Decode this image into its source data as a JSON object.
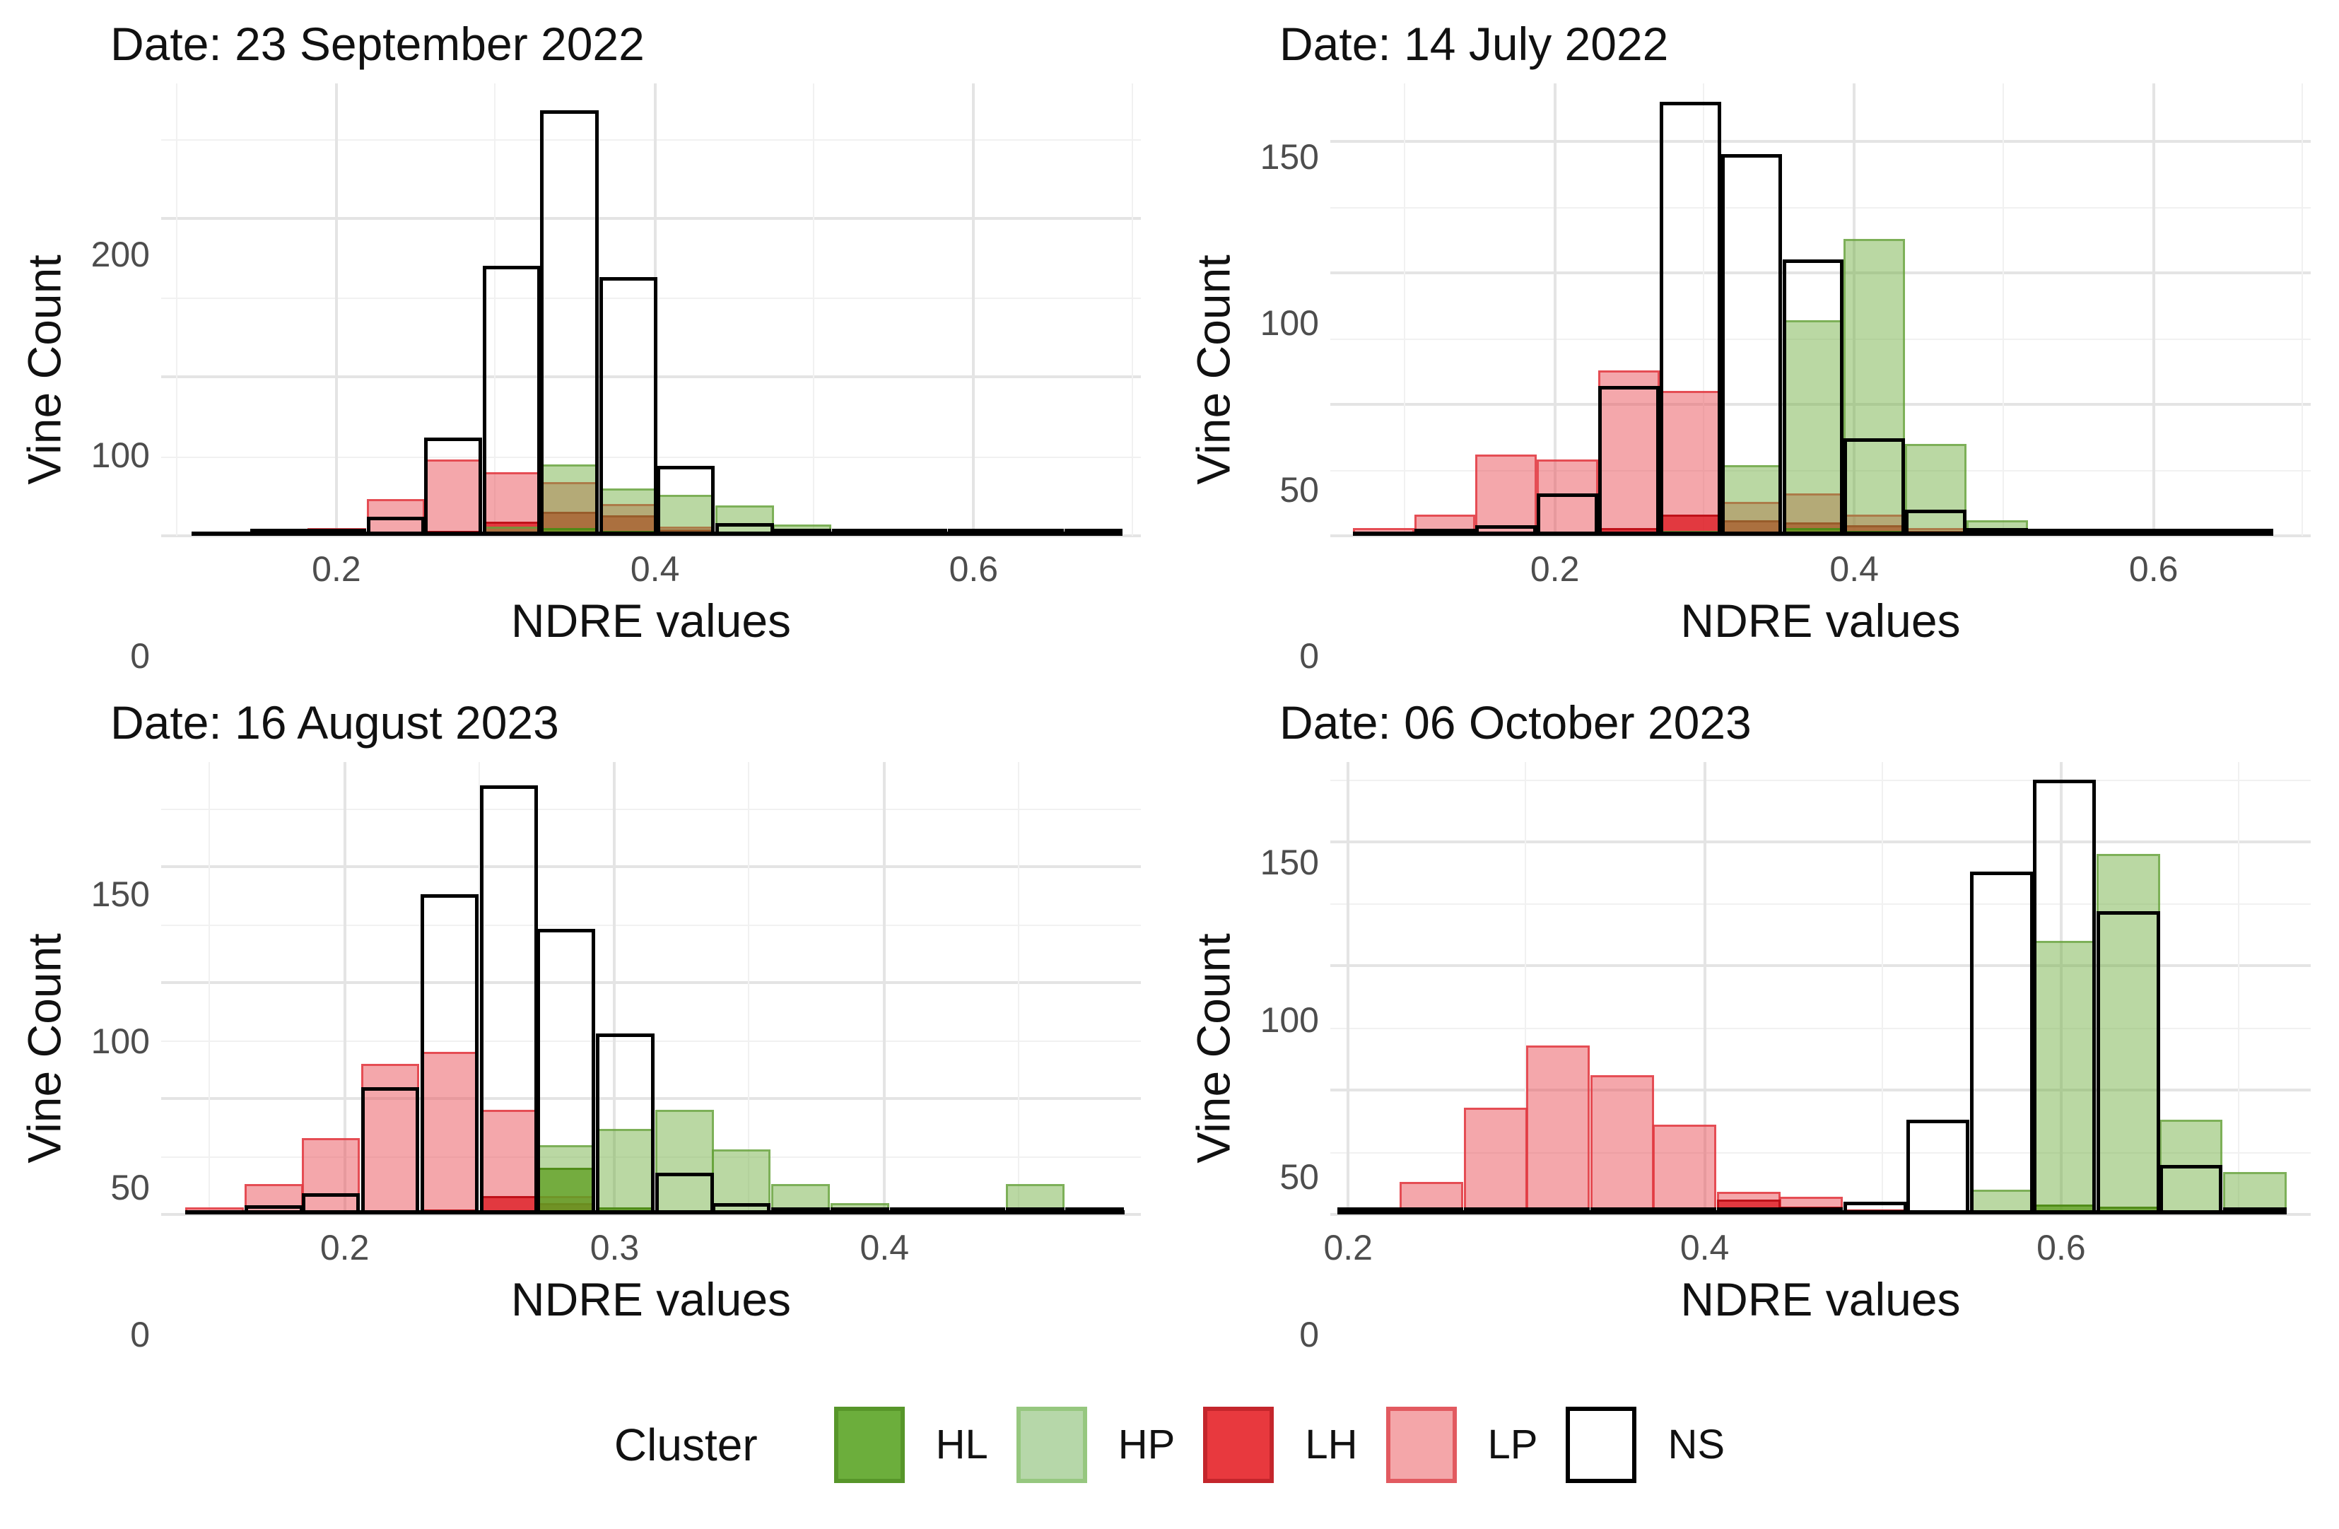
{
  "chart_data": {
    "type": "bar",
    "subtype": "overlaid-histograms",
    "figure_title": "",
    "x_axis_label": "NDRE values",
    "y_axis_label": "Vine Count",
    "legend": {
      "title": "Cluster",
      "position": "bottom",
      "items": [
        {
          "label": "HL",
          "fill": "#6CAE3C",
          "border": "#57962A"
        },
        {
          "label": "HP",
          "fill": "#B6D7A9",
          "border": "#96C77F"
        },
        {
          "label": "LH",
          "fill": "#E8393E",
          "border": "#C4262C"
        },
        {
          "label": "LP",
          "fill": "#F4A6A9",
          "border": "#E25A60"
        },
        {
          "label": "NS",
          "fill": "#FFFFFF",
          "border": "#000000"
        }
      ]
    },
    "draw_order": [
      "LP",
      "LH",
      "HP",
      "HL",
      "NS"
    ],
    "bar_colors": {
      "LP": {
        "fill": "rgba(234,80,87,0.50)",
        "border": "rgba(225,55,62,0.80)"
      },
      "LH": {
        "fill": "rgba(221,26,33,0.78)",
        "border": "rgba(185,12,20,0.85)"
      },
      "HP": {
        "fill": "rgba(110,173,62,0.48)",
        "border": "rgba(100,160,55,0.70)"
      },
      "HL": {
        "fill": "rgba(92,158,29,0.75)",
        "border": "rgba(75,135,20,0.88)"
      },
      "NS": {
        "fill": "transparent",
        "border": "#000000"
      }
    },
    "grid": {
      "major_color": "#e4e4e4",
      "minor_color": "#f1f1f1",
      "background": "#ffffff"
    },
    "panels": [
      {
        "title": "Date: 23 September 2022",
        "x_min": 0.09,
        "x_max": 0.705,
        "y_max": 285,
        "x_ticks": [
          0.2,
          0.4,
          0.6
        ],
        "y_ticks": [
          0,
          100,
          200
        ],
        "x_minor": [
          0.1,
          0.3,
          0.5,
          0.7
        ],
        "y_minor": [
          50,
          150,
          250
        ],
        "bin_width": 0.0365,
        "baseline": [
          0.109,
          0.6935
        ],
        "series": {
          "LP": [
            [
              0.109,
              2
            ],
            [
              0.146,
              1
            ],
            [
              0.182,
              5
            ],
            [
              0.219,
              23
            ],
            [
              0.255,
              48
            ],
            [
              0.292,
              40
            ],
            [
              0.328,
              34
            ],
            [
              0.365,
              20
            ],
            [
              0.401,
              6
            ],
            [
              0.438,
              2
            ]
          ],
          "LH": [
            [
              0.255,
              3
            ],
            [
              0.292,
              9
            ],
            [
              0.328,
              15
            ],
            [
              0.365,
              13
            ],
            [
              0.401,
              4
            ]
          ],
          "HP": [
            [
              0.292,
              6
            ],
            [
              0.328,
              45
            ],
            [
              0.365,
              30
            ],
            [
              0.401,
              26
            ],
            [
              0.438,
              19
            ],
            [
              0.474,
              7
            ],
            [
              0.511,
              3
            ]
          ],
          "HL": [
            [
              0.328,
              5
            ],
            [
              0.365,
              3
            ]
          ],
          "NS": [
            [
              0.146,
              1
            ],
            [
              0.182,
              3
            ],
            [
              0.219,
              12
            ],
            [
              0.255,
              62
            ],
            [
              0.292,
              170
            ],
            [
              0.328,
              268
            ],
            [
              0.365,
              163
            ],
            [
              0.401,
              44
            ],
            [
              0.438,
              8
            ],
            [
              0.474,
              4
            ],
            [
              0.511,
              2
            ],
            [
              0.547,
              2
            ],
            [
              0.584,
              2
            ],
            [
              0.62,
              3
            ],
            [
              0.657,
              3
            ]
          ]
        }
      },
      {
        "title": "Date: 14 July 2022",
        "x_min": 0.05,
        "x_max": 0.705,
        "y_max": 172,
        "x_ticks": [
          0.2,
          0.4,
          0.6
        ],
        "y_ticks": [
          0,
          50,
          100,
          150
        ],
        "x_minor": [
          0.1,
          0.3,
          0.5,
          0.7
        ],
        "y_minor": [
          25,
          75,
          125
        ],
        "bin_width": 0.041,
        "baseline": [
          0.065,
          0.68
        ],
        "series": {
          "LP": [
            [
              0.065,
              3
            ],
            [
              0.106,
              8
            ],
            [
              0.147,
              31
            ],
            [
              0.188,
              29
            ],
            [
              0.229,
              63
            ],
            [
              0.27,
              55
            ],
            [
              0.311,
              13
            ],
            [
              0.352,
              16
            ],
            [
              0.393,
              8
            ],
            [
              0.434,
              3
            ]
          ],
          "LH": [
            [
              0.229,
              3
            ],
            [
              0.27,
              8
            ],
            [
              0.311,
              6
            ],
            [
              0.352,
              5
            ],
            [
              0.393,
              4
            ],
            [
              0.434,
              2
            ]
          ],
          "HP": [
            [
              0.27,
              2
            ],
            [
              0.311,
              27
            ],
            [
              0.352,
              82
            ],
            [
              0.393,
              113
            ],
            [
              0.434,
              35
            ],
            [
              0.475,
              6
            ],
            [
              0.639,
              2
            ]
          ],
          "HL": [
            [
              0.352,
              3
            ],
            [
              0.393,
              2
            ]
          ],
          "NS": [
            [
              0.106,
              1
            ],
            [
              0.147,
              4
            ],
            [
              0.188,
              16
            ],
            [
              0.229,
              57
            ],
            [
              0.27,
              165
            ],
            [
              0.311,
              145
            ],
            [
              0.352,
              105
            ],
            [
              0.393,
              37
            ],
            [
              0.434,
              10
            ],
            [
              0.475,
              3
            ],
            [
              0.516,
              1
            ],
            [
              0.557,
              1
            ],
            [
              0.598,
              1
            ],
            [
              0.639,
              1
            ]
          ]
        }
      },
      {
        "title": "Date: 16 August 2023",
        "x_min": 0.132,
        "x_max": 0.495,
        "y_max": 195,
        "x_ticks": [
          0.2,
          0.3,
          0.4
        ],
        "y_ticks": [
          0,
          50,
          100,
          150
        ],
        "x_minor": [
          0.15,
          0.25,
          0.35,
          0.45
        ],
        "y_minor": [
          25,
          75,
          125,
          175
        ],
        "bin_width": 0.0217,
        "baseline": [
          0.141,
          0.489
        ],
        "series": {
          "LP": [
            [
              0.141,
              3
            ],
            [
              0.163,
              13
            ],
            [
              0.184,
              33
            ],
            [
              0.206,
              65
            ],
            [
              0.228,
              70
            ],
            [
              0.25,
              45
            ],
            [
              0.271,
              8
            ]
          ],
          "LH": [
            [
              0.228,
              2
            ],
            [
              0.25,
              8
            ],
            [
              0.271,
              5
            ]
          ],
          "HP": [
            [
              0.271,
              30
            ],
            [
              0.293,
              37
            ],
            [
              0.315,
              45
            ],
            [
              0.336,
              28
            ],
            [
              0.358,
              13
            ],
            [
              0.38,
              5
            ],
            [
              0.402,
              3
            ],
            [
              0.423,
              2
            ],
            [
              0.445,
              13
            ],
            [
              0.467,
              3
            ]
          ],
          "HL": [
            [
              0.271,
              20
            ],
            [
              0.293,
              3
            ]
          ],
          "NS": [
            [
              0.163,
              4
            ],
            [
              0.184,
              9
            ],
            [
              0.206,
              55
            ],
            [
              0.228,
              138
            ],
            [
              0.25,
              185
            ],
            [
              0.271,
              123
            ],
            [
              0.293,
              78
            ],
            [
              0.315,
              18
            ],
            [
              0.336,
              5
            ],
            [
              0.358,
              2
            ],
            [
              0.38,
              1
            ],
            [
              0.402,
              1
            ],
            [
              0.423,
              1
            ],
            [
              0.445,
              1
            ],
            [
              0.467,
              1
            ]
          ]
        }
      },
      {
        "title": "Date: 06 October 2023",
        "x_min": 0.19,
        "x_max": 0.74,
        "y_max": 182,
        "x_ticks": [
          0.2,
          0.4,
          0.6
        ],
        "y_ticks": [
          0,
          50,
          100,
          150
        ],
        "x_minor": [
          0.3,
          0.5,
          0.7
        ],
        "y_minor": [
          25,
          75,
          125,
          175
        ],
        "bin_width": 0.0355,
        "baseline": [
          0.194,
          0.7265
        ],
        "series": {
          "LP": [
            [
              0.229,
              13
            ],
            [
              0.265,
              43
            ],
            [
              0.3,
              68
            ],
            [
              0.336,
              56
            ],
            [
              0.371,
              36
            ],
            [
              0.407,
              9
            ],
            [
              0.442,
              7
            ]
          ],
          "LH": [
            [
              0.407,
              6
            ],
            [
              0.442,
              3
            ],
            [
              0.478,
              2
            ]
          ],
          "HP": [
            [
              0.549,
              10
            ],
            [
              0.584,
              110
            ],
            [
              0.62,
              145
            ],
            [
              0.655,
              38
            ],
            [
              0.691,
              17
            ]
          ],
          "HL": [
            [
              0.584,
              4
            ],
            [
              0.62,
              3
            ]
          ],
          "NS": [
            [
              0.194,
              1
            ],
            [
              0.229,
              1
            ],
            [
              0.265,
              1
            ],
            [
              0.3,
              1
            ],
            [
              0.336,
              1
            ],
            [
              0.371,
              1
            ],
            [
              0.407,
              1
            ],
            [
              0.442,
              1
            ],
            [
              0.478,
              5
            ],
            [
              0.513,
              38
            ],
            [
              0.549,
              138
            ],
            [
              0.584,
              175
            ],
            [
              0.62,
              122
            ],
            [
              0.655,
              20
            ],
            [
              0.691,
              2
            ]
          ]
        }
      }
    ]
  }
}
